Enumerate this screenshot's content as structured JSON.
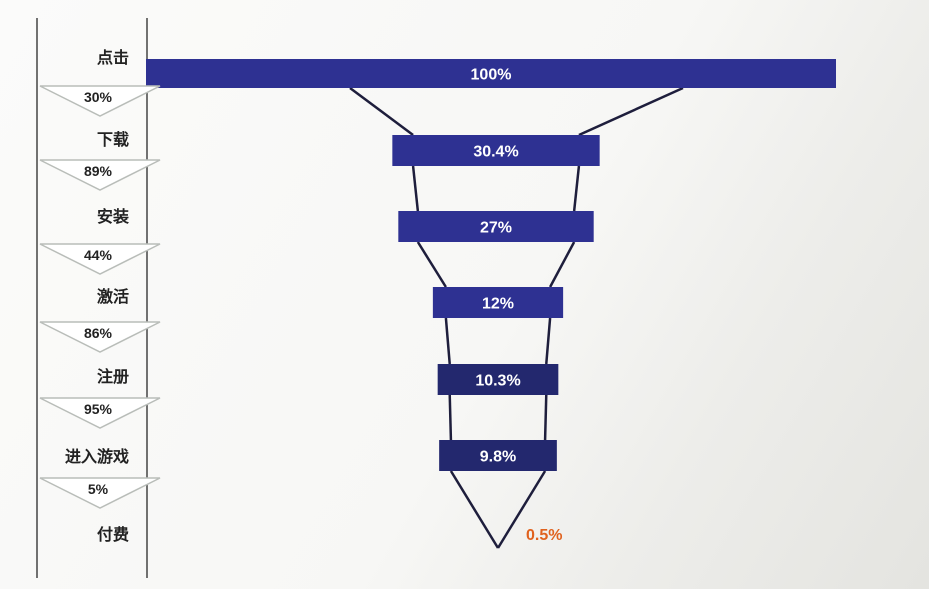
{
  "chart_data": {
    "type": "funnel",
    "categories": [
      "点击",
      "下载",
      "安装",
      "激活",
      "注册",
      "进入游戏",
      "付费"
    ],
    "values": [
      100,
      30.4,
      27,
      12,
      10.3,
      9.8,
      0.5
    ],
    "value_labels": [
      "100%",
      "30.4%",
      "27%",
      "12%",
      "10.3%",
      "9.8%",
      "0.5%"
    ],
    "step_conversion_labels": [
      "30%",
      "89%",
      "44%",
      "86%",
      "95%",
      "5%"
    ],
    "colors": {
      "bar": "#2e3192",
      "bar_small": "#23286e",
      "connector": "#1e1e3c",
      "outside_label": "#e0621e",
      "arrow_fill": "#ffffff",
      "arrow_stroke": "#b9bdb9"
    }
  }
}
